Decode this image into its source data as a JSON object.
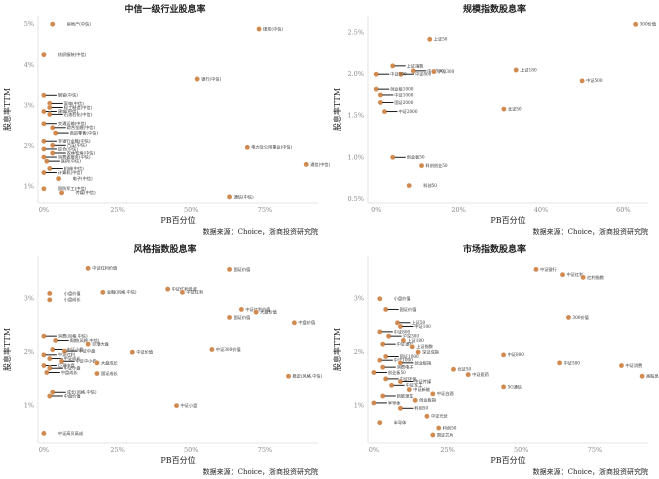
{
  "source_note": "数据来源：Choice，浙商投资研究院",
  "colors": {
    "point": "#d08a50",
    "axis": "#dddddd",
    "text": "#222222"
  },
  "chart_data": [
    {
      "type": "scatter",
      "title": "中信一级行业股息率",
      "xlabel": "PB百分位",
      "ylabel": "股息率TTM",
      "x_ticks": [
        "0%",
        "25%",
        "50%",
        "75%"
      ],
      "y_ticks": [
        "1%",
        "2%",
        "3%",
        "4%",
        "5%"
      ],
      "xlim": [
        -0.02,
        0.93
      ],
      "ylim": [
        0.6,
        5.2
      ],
      "points": [
        {
          "label": "房地产(中信)",
          "x": 0.03,
          "y": 5.0
        },
        {
          "label": "煤炭(中信)",
          "x": 0.73,
          "y": 4.88
        },
        {
          "label": "纺织服装(中信)",
          "x": 0.0,
          "y": 4.25
        },
        {
          "label": "银行(中信)",
          "x": 0.52,
          "y": 3.65
        },
        {
          "label": "钢铁(中信)",
          "x": 0.0,
          "y": 3.25
        },
        {
          "label": "家电(中信)",
          "x": 0.02,
          "y": 3.05
        },
        {
          "label": "轻工制造(中信)",
          "x": 0.02,
          "y": 2.95
        },
        {
          "label": "建筑(中信)",
          "x": 0.0,
          "y": 2.85
        },
        {
          "label": "石油石化(中信)",
          "x": 0.02,
          "y": 2.78
        },
        {
          "label": "交通运输(中信)",
          "x": 0.0,
          "y": 2.55
        },
        {
          "label": "综合金融(中信)",
          "x": 0.03,
          "y": 2.45
        },
        {
          "label": "商贸零售(中信)",
          "x": 0.04,
          "y": 2.32
        },
        {
          "label": "非银行金融(中信)",
          "x": 0.0,
          "y": 2.12
        },
        {
          "label": "汽车(中信)",
          "x": 0.03,
          "y": 2.02
        },
        {
          "label": "电力及公用事业(中信)",
          "x": 0.69,
          "y": 1.97
        },
        {
          "label": "综合(中信)",
          "x": 0.0,
          "y": 1.93
        },
        {
          "label": "农林牧渔(中信)",
          "x": 0.03,
          "y": 1.83
        },
        {
          "label": "消费者服务(中信)",
          "x": 0.0,
          "y": 1.73
        },
        {
          "label": "医药(中信)",
          "x": 0.01,
          "y": 1.63
        },
        {
          "label": "通信(中信)",
          "x": 0.89,
          "y": 1.55
        },
        {
          "label": "机械(中信)",
          "x": 0.02,
          "y": 1.45
        },
        {
          "label": "计算机(中信)",
          "x": 0.0,
          "y": 1.35
        },
        {
          "label": "电子(中信)",
          "x": 0.05,
          "y": 1.2
        },
        {
          "label": "国防军工(中信)",
          "x": 0.0,
          "y": 0.95
        },
        {
          "label": "传媒(中信)",
          "x": 0.06,
          "y": 0.85
        },
        {
          "label": "通信(中信)",
          "x": 0.63,
          "y": 0.75
        }
      ]
    },
    {
      "type": "scatter",
      "title": "规模指数股息率",
      "xlabel": "PB百分位",
      "ylabel": "股息率TTM",
      "x_ticks": [
        "0%",
        "20%",
        "40%",
        "60%"
      ],
      "y_ticks": [
        "0.5%",
        "1.0%",
        "1.5%",
        "2.0%",
        "2.5%"
      ],
      "xlim": [
        -0.02,
        0.66
      ],
      "ylim": [
        0.45,
        2.7
      ],
      "points": [
        {
          "label": "300价值",
          "x": 0.63,
          "y": 2.6
        },
        {
          "label": "上证50",
          "x": 0.13,
          "y": 2.42
        },
        {
          "label": "上证指数",
          "x": 0.04,
          "y": 2.1
        },
        {
          "label": "中证800",
          "x": 0.09,
          "y": 2.04
        },
        {
          "label": "沪深300",
          "x": 0.14,
          "y": 2.03
        },
        {
          "label": "中证800",
          "x": 0.06,
          "y": 2.0
        },
        {
          "label": "中证100",
          "x": 0.0,
          "y": 2.0
        },
        {
          "label": "上证180",
          "x": 0.34,
          "y": 2.05
        },
        {
          "label": "中证500",
          "x": 0.5,
          "y": 1.92
        },
        {
          "label": "创业板1000",
          "x": 0.0,
          "y": 1.82
        },
        {
          "label": "中证1000",
          "x": 0.01,
          "y": 1.75
        },
        {
          "label": "国证2000",
          "x": 0.01,
          "y": 1.66
        },
        {
          "label": "北证50",
          "x": 0.31,
          "y": 1.58
        },
        {
          "label": "中证2000",
          "x": 0.02,
          "y": 1.55
        },
        {
          "label": "创业板50",
          "x": 0.04,
          "y": 1.0
        },
        {
          "label": "科创创业50",
          "x": 0.11,
          "y": 0.9
        },
        {
          "label": "科创50",
          "x": 0.08,
          "y": 0.66
        }
      ]
    },
    {
      "type": "scatter",
      "title": "风格指数股息率",
      "xlabel": "PB百分位",
      "ylabel": "股息率TTM",
      "x_ticks": [
        "0%",
        "25%",
        "50%",
        "75%"
      ],
      "y_ticks": [
        "1%",
        "2%",
        "3%"
      ],
      "xlim": [
        -0.02,
        0.93
      ],
      "ylim": [
        0.3,
        3.8
      ],
      "points": [
        {
          "label": "中证红利价值",
          "x": 0.15,
          "y": 3.57
        },
        {
          "label": "国证价值",
          "x": 0.63,
          "y": 3.55
        },
        {
          "label": "小盘价值",
          "x": 0.02,
          "y": 3.1
        },
        {
          "label": "金融(风格.中信)",
          "x": 0.2,
          "y": 3.12
        },
        {
          "label": "中证红利低波",
          "x": 0.42,
          "y": 3.18
        },
        {
          "label": "中证红利",
          "x": 0.47,
          "y": 3.12
        },
        {
          "label": "小盘成长",
          "x": 0.02,
          "y": 2.98
        },
        {
          "label": "中证红利价值",
          "x": 0.67,
          "y": 2.8
        },
        {
          "label": "大盘价值",
          "x": 0.72,
          "y": 2.75
        },
        {
          "label": "国证价值",
          "x": 0.63,
          "y": 2.65
        },
        {
          "label": "中盘价值",
          "x": 0.85,
          "y": 2.55
        },
        {
          "label": "消费(风格.中信)",
          "x": 0.0,
          "y": 2.3
        },
        {
          "label": "周期(风格.中信)",
          "x": 0.04,
          "y": 2.22
        },
        {
          "label": "巨潮大盘",
          "x": 0.15,
          "y": 2.15
        },
        {
          "label": "中证小盘",
          "x": 0.03,
          "y": 2.05
        },
        {
          "label": "中证中盘",
          "x": 0.07,
          "y": 2.02
        },
        {
          "label": "中证价值",
          "x": 0.3,
          "y": 2.0
        },
        {
          "label": "中证300价值",
          "x": 0.57,
          "y": 2.05
        },
        {
          "label": "中证红利",
          "x": 0.0,
          "y": 1.95
        },
        {
          "label": "中证成长",
          "x": 0.02,
          "y": 1.88
        },
        {
          "label": "中证中小盘",
          "x": 0.06,
          "y": 1.83
        },
        {
          "label": "大盘成长",
          "x": 0.18,
          "y": 1.8
        },
        {
          "label": "巨潮中盘",
          "x": 0.0,
          "y": 1.75
        },
        {
          "label": "中证小盘",
          "x": 0.02,
          "y": 1.7
        },
        {
          "label": "中盘成长",
          "x": 0.01,
          "y": 1.62
        },
        {
          "label": "国证成长",
          "x": 0.18,
          "y": 1.6
        },
        {
          "label": "稳定(风格.中信)",
          "x": 0.83,
          "y": 1.55
        },
        {
          "label": "成长(风格.中信)",
          "x": 0.03,
          "y": 1.25
        },
        {
          "label": "中盘价值",
          "x": 0.02,
          "y": 1.18
        },
        {
          "label": "中证小盘",
          "x": 0.45,
          "y": 1.0
        },
        {
          "label": "中证高贝高成",
          "x": 0.0,
          "y": 0.48
        }
      ]
    },
    {
      "type": "scatter",
      "title": "市场指数股息率",
      "xlabel": "PB百分位",
      "ylabel": "股息率TTM",
      "x_ticks": [
        "0%",
        "25%",
        "50%",
        "75%"
      ],
      "y_ticks": [
        "1%",
        "2%",
        "3%"
      ],
      "xlim": [
        -0.02,
        0.93
      ],
      "ylim": [
        0.3,
        3.8
      ],
      "points": [
        {
          "label": "中证银行",
          "x": 0.55,
          "y": 3.55
        },
        {
          "label": "中证红利",
          "x": 0.64,
          "y": 3.45
        },
        {
          "label": "红利指数",
          "x": 0.71,
          "y": 3.4
        },
        {
          "label": "小盘价值",
          "x": 0.02,
          "y": 3.0
        },
        {
          "label": "国证价值",
          "x": 0.04,
          "y": 2.8
        },
        {
          "label": "300价值",
          "x": 0.66,
          "y": 2.65
        },
        {
          "label": "上证50",
          "x": 0.08,
          "y": 2.55
        },
        {
          "label": "中证100",
          "x": 0.09,
          "y": 2.48
        },
        {
          "label": "中证800",
          "x": 0.02,
          "y": 2.38
        },
        {
          "label": "沪深300",
          "x": 0.05,
          "y": 2.3
        },
        {
          "label": "上证180",
          "x": 0.1,
          "y": 2.22
        },
        {
          "label": "中证银行",
          "x": 0.03,
          "y": 2.15
        },
        {
          "label": "上证指数",
          "x": 0.13,
          "y": 2.1
        },
        {
          "label": "深证成指",
          "x": 0.15,
          "y": 2.0
        },
        {
          "label": "中证800",
          "x": 0.44,
          "y": 1.95
        },
        {
          "label": "国证1000",
          "x": 0.04,
          "y": 1.92
        },
        {
          "label": "中证1000",
          "x": 0.02,
          "y": 1.85
        },
        {
          "label": "创业板指",
          "x": 0.09,
          "y": 1.8
        },
        {
          "label": "中证500",
          "x": 0.63,
          "y": 1.8
        },
        {
          "label": "中证消费",
          "x": 0.84,
          "y": 1.75
        },
        {
          "label": "消费电子",
          "x": 0.03,
          "y": 1.72
        },
        {
          "label": "北证50",
          "x": 0.27,
          "y": 1.68
        },
        {
          "label": "中证医药",
          "x": 0.32,
          "y": 1.58
        },
        {
          "label": "创业板50",
          "x": 0.0,
          "y": 1.62
        },
        {
          "label": "高股息",
          "x": 0.91,
          "y": 1.55
        },
        {
          "label": "中证环保",
          "x": 0.04,
          "y": 1.5
        },
        {
          "label": "中证传媒",
          "x": 0.09,
          "y": 1.45
        },
        {
          "label": "中证军工",
          "x": 0.06,
          "y": 1.38
        },
        {
          "label": "5G通信",
          "x": 0.44,
          "y": 1.35
        },
        {
          "label": "中证新能",
          "x": 0.12,
          "y": 1.3
        },
        {
          "label": "中证白酒",
          "x": 0.2,
          "y": 1.22
        },
        {
          "label": "新能源车",
          "x": 0.03,
          "y": 1.18
        },
        {
          "label": "创业板指",
          "x": 0.14,
          "y": 1.1
        },
        {
          "label": "半导体",
          "x": 0.0,
          "y": 1.05
        },
        {
          "label": "科创50",
          "x": 0.09,
          "y": 0.95
        },
        {
          "label": "中证光伏",
          "x": 0.18,
          "y": 0.8
        },
        {
          "label": "半导体",
          "x": 0.02,
          "y": 0.68
        },
        {
          "label": "科创50",
          "x": 0.22,
          "y": 0.58
        },
        {
          "label": "国证芯片",
          "x": 0.2,
          "y": 0.45
        }
      ]
    }
  ]
}
